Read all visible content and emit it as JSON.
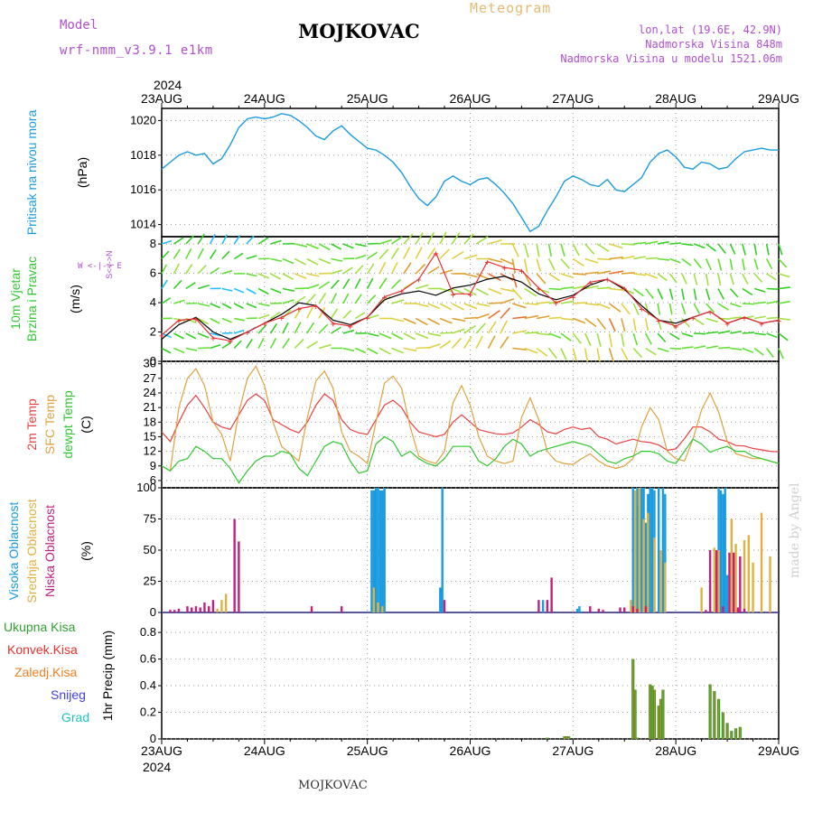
{
  "header": {
    "model_label": "Model",
    "model_name": "wrf-nmm_v3.9.1 e1km",
    "station": "MOJKOVAC",
    "meteogram_label": "Meteogram",
    "lonlat": "lon,lat (19.6E, 42.9N)",
    "altitude": "Nadmorska Visina 848m",
    "model_altitude": "Nadmorska Visina u modelu 1521.06m"
  },
  "footer": {
    "station": "MOJKOVAC",
    "credit": "made by Angel"
  },
  "colors": {
    "pressure": "#1a9be0",
    "temp2m": "#e84040",
    "sfc": "#e0a040",
    "dewpt": "#30c830",
    "high_cloud": "#1a9be0",
    "mid_cloud": "#e0b040",
    "low_cloud": "#c02080",
    "total_precip": "#30a030",
    "conv_precip": "#e83030",
    "ice": "#f08020",
    "snow": "#4040e0",
    "hail": "#20c0c0",
    "wind_speed": "#000000",
    "gust": "#e83030"
  },
  "chart_data": [
    {
      "id": "time_axis",
      "type": "table",
      "year": "2024",
      "dates": [
        "23AUG",
        "24AUG",
        "25AUG",
        "26AUG",
        "27AUG",
        "28AUG",
        "29AUG"
      ]
    },
    {
      "id": "pressure",
      "type": "line",
      "ylabel": "(hPa)",
      "side_title": "Pritisak na nivou mora",
      "yticks": [
        1014,
        1016,
        1018,
        1020
      ],
      "ylim": [
        1013.3,
        1020.7
      ],
      "x": [
        0,
        2,
        4,
        6,
        8,
        10,
        12,
        14,
        16,
        18,
        20,
        22,
        24,
        26,
        28,
        30,
        32,
        34,
        36,
        38,
        40,
        42,
        44,
        46,
        48,
        50,
        52,
        54,
        56,
        58,
        60,
        62,
        64,
        66,
        68,
        70,
        72,
        74,
        76,
        78,
        80,
        82,
        84,
        86,
        88,
        90,
        92,
        94,
        96,
        98,
        100,
        102,
        104,
        106,
        108,
        110,
        112,
        114,
        116,
        118,
        120,
        122,
        124,
        126,
        128,
        130,
        132,
        134,
        136,
        138,
        140,
        142,
        144
      ],
      "y": [
        1017.2,
        1017.6,
        1018.0,
        1018.2,
        1018.0,
        1018.1,
        1017.5,
        1017.8,
        1018.6,
        1019.6,
        1020.1,
        1020.2,
        1020.1,
        1020.2,
        1020.4,
        1020.3,
        1020.0,
        1019.6,
        1019.1,
        1018.9,
        1019.4,
        1019.7,
        1019.2,
        1018.8,
        1018.4,
        1018.3,
        1018.0,
        1017.6,
        1017.0,
        1016.2,
        1015.5,
        1015.1,
        1015.6,
        1016.5,
        1016.8,
        1016.5,
        1016.3,
        1016.6,
        1016.7,
        1016.3,
        1015.8,
        1015.2,
        1014.4,
        1013.6,
        1013.9,
        1014.8,
        1015.6,
        1016.5,
        1016.8,
        1016.6,
        1016.3,
        1016.2,
        1016.6,
        1016.0,
        1015.9,
        1016.3,
        1016.7,
        1017.6,
        1018.1,
        1018.3,
        1017.9,
        1017.3,
        1017.2,
        1017.6,
        1017.5,
        1017.2,
        1017.3,
        1017.8,
        1018.2,
        1018.3,
        1018.4,
        1018.3,
        1018.3
      ]
    },
    {
      "id": "wind",
      "type": "line",
      "ylabel": "(m/s)",
      "side_title": "10m Vjetar Brzina i Pravac",
      "compass_label": "W <-|-> E",
      "compass_vertical": "S<-|->N",
      "yticks": [
        0,
        2,
        4,
        6,
        8
      ],
      "ylim": [
        0,
        8.5
      ],
      "x": [
        0,
        4,
        8,
        12,
        16,
        20,
        24,
        28,
        32,
        36,
        40,
        44,
        48,
        52,
        56,
        60,
        64,
        68,
        72,
        76,
        80,
        84,
        88,
        92,
        96,
        100,
        104,
        108,
        112,
        116,
        120,
        124,
        128,
        132,
        136,
        140,
        144
      ],
      "speed": [
        1.5,
        2.5,
        3.0,
        2.0,
        1.5,
        2.0,
        2.6,
        3.2,
        4.0,
        3.8,
        2.8,
        2.5,
        3.0,
        4.2,
        4.6,
        4.8,
        4.5,
        5.0,
        5.2,
        5.6,
        5.8,
        5.4,
        4.6,
        4.2,
        4.5,
        5.2,
        5.6,
        4.9,
        3.8,
        2.8,
        2.6,
        3.0,
        3.4,
        2.6,
        3.0,
        2.6,
        2.8
      ],
      "gust": [
        1.8,
        2.8,
        2.9,
        1.6,
        1.4,
        2.0,
        2.6,
        3.0,
        3.6,
        3.8,
        2.6,
        2.4,
        3.0,
        4.4,
        4.8,
        5.6,
        7.4,
        4.6,
        4.6,
        6.8,
        6.4,
        6.2,
        5.0,
        4.0,
        4.4,
        5.4,
        5.6,
        5.0,
        3.6,
        2.8,
        2.4,
        3.0,
        3.4,
        2.6,
        3.0,
        2.6,
        2.8
      ]
    },
    {
      "id": "temperature",
      "type": "line",
      "ylabel": "(C)",
      "side_titles": [
        "2m Temp",
        "SFC Temp",
        "dewpt Temp"
      ],
      "yticks": [
        6,
        9,
        12,
        15,
        18,
        21,
        24,
        27,
        30
      ],
      "ylim": [
        4.5,
        30.5
      ],
      "x": [
        0,
        2,
        4,
        6,
        8,
        10,
        12,
        14,
        16,
        18,
        20,
        22,
        24,
        26,
        28,
        30,
        32,
        34,
        36,
        38,
        40,
        42,
        44,
        46,
        48,
        50,
        52,
        54,
        56,
        58,
        60,
        62,
        64,
        66,
        68,
        70,
        72,
        74,
        76,
        78,
        80,
        82,
        84,
        86,
        88,
        90,
        92,
        94,
        96,
        98,
        100,
        102,
        104,
        106,
        108,
        110,
        112,
        114,
        116,
        118,
        120,
        122,
        124,
        126,
        128,
        130,
        132,
        134,
        136,
        138,
        140,
        142,
        144
      ],
      "series": [
        {
          "name": "2m Temp",
          "color": "#e84040",
          "values": [
            16,
            14,
            18,
            21.5,
            23.5,
            21,
            18,
            17,
            16.5,
            19.5,
            22.5,
            23.8,
            22.5,
            18.5,
            17.5,
            16.5,
            15.8,
            18,
            21.5,
            23.8,
            22.5,
            18.5,
            16.5,
            15.8,
            15.5,
            18.5,
            21.5,
            22.5,
            21,
            18,
            16,
            15.5,
            15,
            15.5,
            18,
            19.5,
            18,
            16.5,
            16,
            15.6,
            15.5,
            15.8,
            17,
            18.5,
            17.5,
            16,
            15.6,
            16.5,
            17,
            16.5,
            16.8,
            15,
            14.5,
            13.5,
            14,
            14.5,
            14,
            13.8,
            13.3,
            12.2,
            12.5,
            14.6,
            17,
            17,
            16,
            14.5,
            14,
            13.2,
            13.1,
            12.6,
            12.3,
            12,
            11.9
          ]
        },
        {
          "name": "SFC Temp",
          "color": "#e0a040",
          "values": [
            9,
            8,
            21,
            27,
            29,
            25.5,
            18,
            15.5,
            10,
            20,
            27,
            29.5,
            25.5,
            18,
            13,
            11.5,
            10,
            19,
            26.5,
            28.5,
            25,
            16,
            12,
            11,
            9.5,
            18,
            26,
            27.5,
            25,
            17,
            11,
            10,
            9.5,
            12,
            22,
            25.5,
            21.5,
            15,
            11,
            10,
            9.5,
            10,
            19,
            23,
            18.5,
            12,
            10,
            9.5,
            9.3,
            10.5,
            11.5,
            10,
            9,
            8.5,
            9,
            10.5,
            17,
            21,
            18.5,
            12,
            10.5,
            10,
            14.5,
            20.5,
            24,
            20,
            14,
            11.5,
            11,
            10.5,
            10.5,
            10,
            9.5
          ]
        },
        {
          "name": "dewpt Temp",
          "color": "#30c830",
          "values": [
            9,
            8,
            10,
            10.5,
            13,
            12,
            10.5,
            10.5,
            8.5,
            5.5,
            8,
            10,
            11,
            11,
            12,
            11.5,
            8.5,
            7,
            10,
            13,
            14,
            13.5,
            10,
            7.5,
            8,
            13.5,
            15,
            14,
            11,
            12,
            10.5,
            9.5,
            9,
            10.5,
            13,
            13,
            13,
            10,
            9,
            10.5,
            13,
            14.5,
            13.5,
            11,
            12,
            12.5,
            13,
            13.5,
            14,
            13.5,
            13,
            11.5,
            10,
            9.5,
            10.5,
            11,
            12,
            12,
            11.5,
            10,
            9.5,
            12,
            14.5,
            13.5,
            11.8,
            12.5,
            13,
            12,
            12,
            11,
            10.5,
            10,
            9.5
          ]
        }
      ]
    },
    {
      "id": "cloud",
      "type": "bar",
      "ylabel": "(%)",
      "side_titles": [
        "Visoka Oblacnost",
        "Srednja Oblacnost",
        "Niska Oblacnost"
      ],
      "yticks": [
        0,
        25,
        50,
        75,
        100
      ],
      "ylim": [
        0,
        100
      ],
      "series": [
        {
          "name": "Visoka Oblacnost",
          "color": "#1a9be0",
          "x": [
            49,
            49.5,
            50,
            50.5,
            51,
            51.5,
            52,
            65,
            65.5,
            89,
            97,
            97.5,
            110,
            111,
            111.5,
            112,
            112.5,
            113,
            113.5,
            114,
            114.5,
            115,
            116,
            117,
            117.5,
            130,
            130.5,
            131,
            131.5,
            132
          ],
          "values": [
            98,
            98,
            100,
            100,
            98,
            98,
            100,
            20,
            100,
            10,
            3,
            5,
            100,
            100,
            85,
            100,
            100,
            72,
            95,
            100,
            100,
            98,
            100,
            100,
            95,
            100,
            98,
            95,
            100,
            30
          ]
        },
        {
          "name": "Srednja Oblacnost",
          "color": "#e0b040",
          "x": [
            11,
            13,
            14,
            15,
            49.5,
            50.5,
            51.5,
            90,
            91,
            109.5,
            110.5,
            111.5,
            112.5,
            113.5,
            115,
            116.5,
            117.5,
            126,
            128,
            129,
            130,
            133,
            134,
            136,
            137,
            138,
            140,
            142
          ],
          "values": [
            5,
            3,
            10,
            15,
            20,
            8,
            5,
            10,
            5,
            10,
            98,
            100,
            75,
            80,
            60,
            50,
            40,
            20,
            25,
            52,
            50,
            75,
            55,
            58,
            62,
            40,
            80,
            45
          ]
        },
        {
          "name": "Niska Oblacnost",
          "color": "#c02080",
          "x": [
            2,
            3,
            4,
            6,
            7,
            8,
            9,
            10,
            11,
            12,
            17,
            18,
            35,
            42,
            66,
            88,
            90,
            91,
            100,
            102,
            103,
            107,
            108,
            110,
            111,
            113,
            127,
            128,
            129.5,
            131,
            132.5,
            133.5,
            134.5,
            135,
            136
          ],
          "values": [
            2,
            2,
            3,
            5,
            4,
            5,
            4,
            8,
            5,
            10,
            75,
            57,
            5,
            5,
            10,
            10,
            10,
            28,
            5,
            3,
            2,
            4,
            4,
            5,
            3,
            5,
            2,
            50,
            50,
            5,
            48,
            48,
            4,
            45,
            3
          ]
        }
      ]
    },
    {
      "id": "precip",
      "type": "bar",
      "ylabel": "1hr Precip (mm)",
      "side_titles": [
        "Ukupna Kisa",
        "Konvek.Kisa",
        "Zaledj.Kisa",
        "Snijeg",
        "Grad"
      ],
      "yticks": [
        0,
        0.2,
        0.4,
        0.6,
        0.8
      ],
      "ylim": [
        0,
        0.95
      ],
      "x": [
        90,
        94,
        94.5,
        95,
        110,
        110.5,
        111,
        114,
        114.5,
        115,
        116,
        116.5,
        117,
        128,
        129,
        130,
        131,
        132,
        133,
        134,
        135
      ],
      "values": [
        0.01,
        0.02,
        0.02,
        0.02,
        0.6,
        0.37,
        0.01,
        0.41,
        0.4,
        0.37,
        0.25,
        0.3,
        0.37,
        0.41,
        0.36,
        0.3,
        0.2,
        0.12,
        0.06,
        0.08,
        0.09
      ]
    }
  ]
}
